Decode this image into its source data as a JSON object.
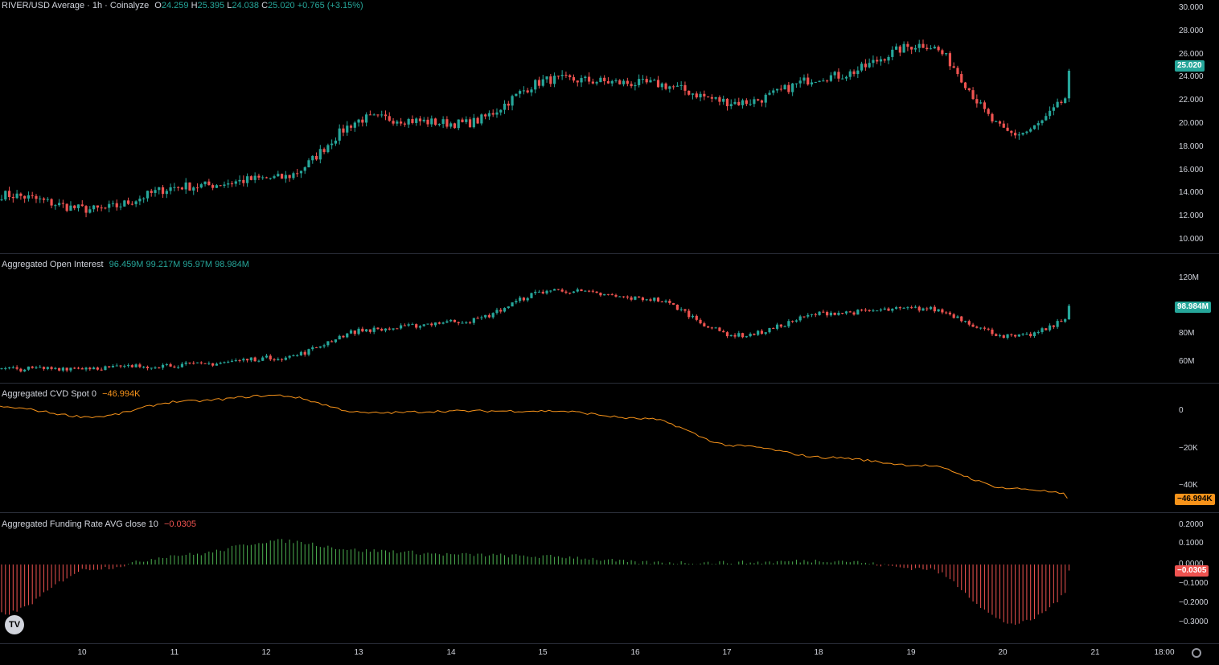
{
  "price": {
    "legend": {
      "name": "RIVER/USD Average · 1h · Coinalyze",
      "o_label": "O",
      "o": "24.259",
      "h_label": "H",
      "h": "25.395",
      "l_label": "L",
      "l": "24.038",
      "c_label": "C",
      "c": "25.020",
      "chg": "+0.765 (+3.15%)"
    },
    "last": "25.020",
    "ticks": [
      "30.000",
      "28.000",
      "26.000",
      "24.000",
      "22.000",
      "20.000",
      "18.000",
      "16.000",
      "14.000",
      "12.000",
      "10.000"
    ]
  },
  "oi": {
    "legend": {
      "name": "Aggregated Open Interest",
      "vals": "96.459M 99.217M 95.97M 98.984M"
    },
    "last": "98.984M",
    "ticks": [
      "120M",
      "80M",
      "60M"
    ]
  },
  "cvd": {
    "legend": {
      "name": "Aggregated CVD Spot 0",
      "val": "−46.994K"
    },
    "last": "−46.994K",
    "ticks": [
      "0",
      "−20K",
      "−40K"
    ]
  },
  "funding": {
    "legend": {
      "name": "Aggregated Funding Rate AVG close 10",
      "val": "−0.0305"
    },
    "last": "−0.0305",
    "ticks": [
      "0.2000",
      "0.1000",
      "0.0000",
      "−0.1000",
      "−0.2000",
      "−0.3000"
    ]
  },
  "xaxis": [
    "10",
    "11",
    "12",
    "13",
    "14",
    "15",
    "16",
    "17",
    "18",
    "19",
    "20",
    "21",
    "18:00"
  ],
  "colors": {
    "up": "#26a69a",
    "down": "#ef5350",
    "cvd": "#f7931a",
    "fund_up": "#4caf50",
    "fund_down": "#ef5350",
    "last_price": "#26a69a",
    "last_cvd": "#f7931a",
    "last_fund": "#ef5350"
  },
  "icons": {
    "logo": "tradingview-logo-icon",
    "settings": "gear-icon"
  },
  "chart_data": [
    {
      "type": "candlestick",
      "title": "RIVER/USD Average · 1h · Coinalyze",
      "ylim": [
        9,
        31
      ],
      "x": [
        "9",
        "10",
        "11",
        "12",
        "13",
        "14",
        "15",
        "16",
        "17",
        "18",
        "19",
        "20",
        "21"
      ],
      "close": [
        13.2,
        11.8,
        14.0,
        14.8,
        20.5,
        20.0,
        24.2,
        23.8,
        22.0,
        24.5,
        27.5,
        19.0,
        25.02
      ]
    },
    {
      "type": "candlestick",
      "title": "Aggregated Open Interest",
      "unit": "M",
      "ylim": [
        50,
        130
      ],
      "x": [
        "9",
        "10",
        "11",
        "12",
        "13",
        "14",
        "15",
        "16",
        "17",
        "18",
        "19",
        "20",
        "21"
      ],
      "close": [
        54,
        55,
        57,
        62,
        82,
        88,
        110,
        104,
        78,
        94,
        97,
        77,
        98.984
      ]
    },
    {
      "type": "line",
      "title": "Aggregated CVD Spot 0",
      "unit": "K",
      "ylim": [
        -50,
        8
      ],
      "x": [
        "9",
        "10",
        "11",
        "12",
        "13",
        "14",
        "15",
        "16",
        "17",
        "18",
        "19",
        "20",
        "21"
      ],
      "values": [
        0,
        -5,
        3,
        6,
        -3,
        -2,
        -2,
        -6,
        -20,
        -26,
        -30,
        -42,
        -46.994
      ]
    },
    {
      "type": "bar",
      "title": "Aggregated Funding Rate AVG close 10",
      "ylim": [
        -0.35,
        0.22
      ],
      "x": [
        "9",
        "10",
        "11",
        "12",
        "13",
        "14",
        "15",
        "16",
        "17",
        "18",
        "19",
        "20",
        "21"
      ],
      "values": [
        -0.25,
        -0.02,
        0.05,
        0.12,
        0.07,
        0.05,
        0.04,
        0.01,
        0.01,
        0.02,
        -0.02,
        -0.3,
        -0.0305
      ]
    }
  ]
}
